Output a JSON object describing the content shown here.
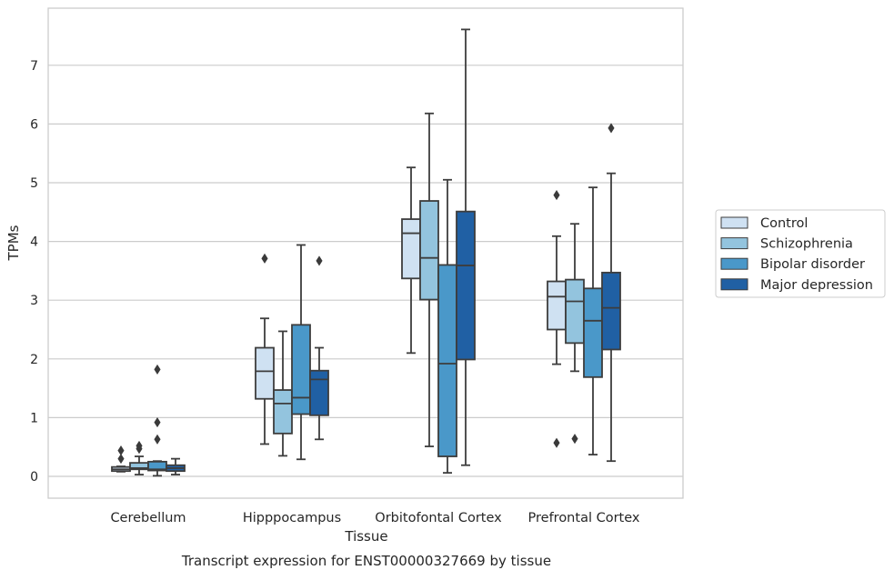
{
  "chart_data": {
    "type": "box",
    "caption": "Transcript expression for ENST00000327669 by tissue",
    "xlabel": "Tissue",
    "ylabel": "TPMs",
    "ylim": [
      -0.35,
      7.95
    ],
    "yticks": [
      0,
      1,
      2,
      3,
      4,
      5,
      6,
      7
    ],
    "grid": "horizontal",
    "legend_position": "right",
    "categories": [
      "Cerebellum",
      "Hipppocampus",
      "Orbitofontal Cortex",
      "Prefrontal Cortex"
    ],
    "series": [
      {
        "name": "Control",
        "color": "#cfe1f2",
        "boxes": [
          {
            "whisker_low": 0.08,
            "q1": 0.09,
            "median": 0.12,
            "q3": 0.16,
            "whisker_high": 0.17,
            "outliers": [
              0.3,
              0.44
            ]
          },
          {
            "whisker_low": 0.55,
            "q1": 1.32,
            "median": 1.79,
            "q3": 2.19,
            "whisker_high": 2.69,
            "outliers": [
              3.71
            ]
          },
          {
            "whisker_low": 2.1,
            "q1": 3.37,
            "median": 4.14,
            "q3": 4.38,
            "whisker_high": 5.26,
            "outliers": []
          },
          {
            "whisker_low": 1.91,
            "q1": 2.5,
            "median": 3.06,
            "q3": 3.32,
            "whisker_high": 4.09,
            "outliers": [
              0.57,
              4.79
            ]
          }
        ]
      },
      {
        "name": "Schizophrenia",
        "color": "#93c4de",
        "boxes": [
          {
            "whisker_low": 0.03,
            "q1": 0.12,
            "median": 0.14,
            "q3": 0.23,
            "whisker_high": 0.34,
            "outliers": [
              0.47,
              0.52
            ]
          },
          {
            "whisker_low": 0.35,
            "q1": 0.73,
            "median": 1.24,
            "q3": 1.47,
            "whisker_high": 2.47,
            "outliers": []
          },
          {
            "whisker_low": 0.51,
            "q1": 3.01,
            "median": 3.72,
            "q3": 4.69,
            "whisker_high": 6.18,
            "outliers": []
          },
          {
            "whisker_low": 1.79,
            "q1": 2.27,
            "median": 2.98,
            "q3": 3.35,
            "whisker_high": 4.3,
            "outliers": [
              0.64
            ]
          }
        ]
      },
      {
        "name": "Bipolar disorder",
        "color": "#4a98c9",
        "boxes": [
          {
            "whisker_low": 0.01,
            "q1": 0.1,
            "median": 0.12,
            "q3": 0.25,
            "whisker_high": 0.26,
            "outliers": [
              0.63,
              0.92,
              1.82
            ]
          },
          {
            "whisker_low": 0.29,
            "q1": 1.06,
            "median": 1.34,
            "q3": 2.58,
            "whisker_high": 3.94,
            "outliers": []
          },
          {
            "whisker_low": 0.06,
            "q1": 0.34,
            "median": 1.92,
            "q3": 3.6,
            "whisker_high": 5.05,
            "outliers": []
          },
          {
            "whisker_low": 0.37,
            "q1": 1.69,
            "median": 2.65,
            "q3": 3.2,
            "whisker_high": 4.92,
            "outliers": []
          }
        ]
      },
      {
        "name": "Major depression",
        "color": "#2060a4",
        "boxes": [
          {
            "whisker_low": 0.03,
            "q1": 0.09,
            "median": 0.14,
            "q3": 0.19,
            "whisker_high": 0.3,
            "outliers": []
          },
          {
            "whisker_low": 0.63,
            "q1": 1.04,
            "median": 1.65,
            "q3": 1.8,
            "whisker_high": 2.19,
            "outliers": [
              3.67
            ]
          },
          {
            "whisker_low": 0.19,
            "q1": 1.99,
            "median": 3.59,
            "q3": 4.51,
            "whisker_high": 7.61,
            "outliers": []
          },
          {
            "whisker_low": 0.26,
            "q1": 2.16,
            "median": 2.87,
            "q3": 3.47,
            "whisker_high": 5.16,
            "outliers": [
              5.93
            ]
          }
        ]
      }
    ]
  },
  "colors": {
    "frame": "#cccccc",
    "grid": "#cccccc",
    "box_edge": "#3d3d3d",
    "text": "#262626"
  }
}
